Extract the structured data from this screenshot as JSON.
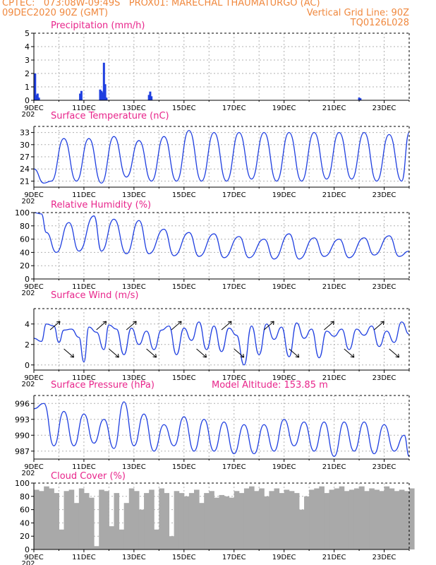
{
  "header": {
    "line1_left": "CPTEC:   073:08W-09:49S   PROX01: MARECHAL THAUMATURGO (AC)",
    "line2_left": "09DEC2020 90Z (GMT)",
    "line2_right": "Vertical Grid Line: 90Z",
    "line3_right": "TQ0126L028"
  },
  "colors": {
    "header": "#f0883e",
    "title": "#e8258b",
    "series": "#1f3fe0",
    "cloud": "#a9a9a9",
    "grid": "#b0b0b0"
  },
  "x_ticks": [
    "9DEC",
    "11DEC",
    "13DEC",
    "15DEC",
    "17DEC",
    "19DEC",
    "21DEC",
    "23DEC"
  ],
  "year_fragment": "202",
  "chart_data": [
    {
      "id": "precip",
      "type": "bar",
      "title": "Precipitation (mm/h)",
      "ylim": [
        0,
        5
      ],
      "yticks": [
        0,
        1,
        2,
        3,
        4,
        5
      ],
      "x": [
        0.05,
        0.1,
        0.15,
        0.2,
        1.85,
        1.9,
        2.65,
        2.7,
        2.75,
        2.8,
        2.85,
        2.9,
        4.6,
        4.65,
        4.7,
        13.0,
        13.05
      ],
      "values": [
        2.0,
        0.4,
        0.5,
        0.2,
        0.5,
        0.7,
        0.8,
        0.7,
        0.6,
        2.8,
        1.2,
        0.2,
        0.4,
        0.65,
        0.3,
        0.2,
        0.15
      ]
    },
    {
      "id": "temp",
      "type": "line",
      "title": "Surface Temperature (nC)",
      "ylim": [
        19.5,
        34.5
      ],
      "yticks": [
        21,
        24,
        27,
        30,
        33
      ],
      "x": [
        0,
        0.4,
        0.7,
        1.2,
        1.7,
        2.2,
        2.7,
        3.2,
        3.7,
        4.2,
        4.7,
        5.2,
        5.7,
        6.2,
        6.7,
        7.2,
        7.7,
        8.2,
        8.7,
        9.2,
        9.7,
        10.2,
        10.7,
        11.2,
        11.7,
        12.2,
        12.7,
        13.2,
        13.7,
        14.2,
        14.7,
        15.0
      ],
      "values": [
        24,
        20.5,
        21,
        31.5,
        21,
        31.5,
        20.5,
        32,
        22,
        31,
        21,
        32,
        21,
        33.5,
        21,
        33,
        21,
        33,
        21.5,
        33,
        21,
        33,
        21,
        33,
        21.5,
        33,
        21.5,
        33,
        21,
        32.5,
        21,
        33
      ]
    },
    {
      "id": "rh",
      "type": "line",
      "title": "Relative Humidity (%)",
      "ylim": [
        0,
        100
      ],
      "yticks": [
        0,
        20,
        40,
        60,
        80,
        100
      ],
      "x": [
        0,
        0.3,
        0.5,
        0.9,
        1.4,
        1.8,
        2.4,
        2.7,
        3.2,
        3.7,
        4.2,
        4.6,
        5.2,
        5.6,
        6.2,
        6.6,
        7.2,
        7.6,
        8.2,
        8.6,
        9.2,
        9.6,
        10.2,
        10.6,
        11.2,
        11.6,
        12.2,
        12.6,
        13.2,
        13.6,
        14.2,
        14.6,
        15.0
      ],
      "values": [
        100,
        98,
        70,
        40,
        85,
        42,
        95,
        42,
        90,
        38,
        88,
        38,
        75,
        35,
        70,
        34,
        68,
        32,
        64,
        32,
        60,
        30,
        68,
        30,
        62,
        34,
        60,
        32,
        62,
        36,
        65,
        34,
        42
      ]
    },
    {
      "id": "wind",
      "type": "line",
      "title": "Surface Wind (m/s)",
      "ylim": [
        -0.5,
        5.5
      ],
      "yticks": [
        0,
        2,
        4
      ],
      "x": [
        0,
        0.3,
        0.5,
        0.8,
        1.0,
        1.2,
        1.5,
        1.8,
        2.0,
        2.2,
        2.5,
        2.8,
        3.0,
        3.3,
        3.6,
        3.9,
        4.2,
        4.5,
        4.8,
        5.1,
        5.4,
        5.7,
        6.0,
        6.3,
        6.6,
        6.9,
        7.2,
        7.5,
        7.8,
        8.1,
        8.4,
        8.7,
        9.0,
        9.3,
        9.6,
        9.9,
        10.2,
        10.5,
        10.8,
        11.1,
        11.4,
        11.7,
        12.0,
        12.3,
        12.6,
        12.9,
        13.2,
        13.5,
        13.8,
        14.1,
        14.4,
        14.7,
        15.0
      ],
      "values": [
        2.6,
        2.3,
        4.0,
        3.8,
        2.2,
        3.4,
        3.5,
        2.7,
        0.3,
        3.7,
        3.2,
        1.5,
        3.9,
        3.5,
        1.0,
        3.6,
        2.0,
        3.3,
        1.5,
        3.4,
        3.8,
        1.0,
        3.6,
        2.4,
        4.2,
        1.5,
        3.8,
        1.3,
        3.6,
        2.9,
        0.0,
        3.8,
        1.0,
        4.0,
        2.5,
        3.7,
        0.8,
        4.1,
        2.6,
        3.5,
        0.7,
        3.3,
        2.8,
        3.5,
        1.5,
        3.5,
        2.9,
        3.8,
        1.8,
        3.3,
        2.2,
        4.2,
        3.0
      ]
    },
    {
      "id": "press",
      "type": "line",
      "title": "Surface Pressure (hPa)",
      "subtitle": "Model Altitude: 153.85 m",
      "ylim": [
        985.5,
        997.5
      ],
      "yticks": [
        987,
        990,
        993,
        996
      ],
      "x": [
        0,
        0.4,
        0.8,
        1.2,
        1.6,
        2.0,
        2.4,
        2.8,
        3.2,
        3.6,
        4.0,
        4.4,
        4.8,
        5.2,
        5.6,
        6.0,
        6.4,
        6.8,
        7.2,
        7.6,
        8.0,
        8.4,
        8.8,
        9.2,
        9.6,
        10.0,
        10.4,
        10.8,
        11.2,
        11.6,
        12.0,
        12.4,
        12.8,
        13.2,
        13.6,
        14.0,
        14.4,
        14.8,
        15.0
      ],
      "values": [
        995,
        996,
        988,
        994.5,
        988,
        994,
        988.5,
        993,
        987.5,
        996.3,
        988,
        994,
        987,
        992,
        988,
        993.5,
        987,
        993,
        987,
        992.5,
        986.5,
        992,
        986.5,
        992,
        987,
        993,
        988,
        992.5,
        987,
        992.5,
        986,
        992.5,
        987,
        992.5,
        986.5,
        992,
        987,
        990,
        986
      ]
    },
    {
      "id": "cloud",
      "type": "area",
      "title": "Cloud Cover (%)",
      "ylim": [
        0,
        100
      ],
      "yticks": [
        0,
        20,
        40,
        60,
        80,
        100
      ],
      "x": [
        0,
        0.2,
        0.4,
        0.6,
        0.8,
        1.0,
        1.2,
        1.4,
        1.6,
        1.8,
        2.0,
        2.2,
        2.4,
        2.6,
        2.8,
        3.0,
        3.2,
        3.4,
        3.6,
        3.8,
        4.0,
        4.2,
        4.4,
        4.6,
        4.8,
        5.0,
        5.2,
        5.4,
        5.6,
        5.8,
        6.0,
        6.2,
        6.4,
        6.6,
        6.8,
        7.0,
        7.2,
        7.4,
        7.6,
        7.8,
        8.0,
        8.2,
        8.4,
        8.6,
        8.8,
        9.0,
        9.2,
        9.4,
        9.6,
        9.8,
        10.0,
        10.2,
        10.4,
        10.6,
        10.8,
        11.0,
        11.2,
        11.4,
        11.6,
        11.8,
        12.0,
        12.2,
        12.4,
        12.6,
        12.8,
        13.0,
        13.2,
        13.4,
        13.6,
        13.8,
        14.0,
        14.2,
        14.4,
        14.6,
        14.8,
        15.0
      ],
      "values": [
        90,
        88,
        95,
        92,
        85,
        30,
        88,
        90,
        70,
        92,
        85,
        78,
        5,
        90,
        88,
        35,
        85,
        30,
        70,
        92,
        88,
        60,
        85,
        90,
        30,
        92,
        85,
        20,
        88,
        85,
        80,
        85,
        90,
        70,
        85,
        88,
        78,
        82,
        80,
        78,
        88,
        85,
        92,
        95,
        88,
        92,
        80,
        88,
        92,
        85,
        90,
        88,
        85,
        60,
        80,
        90,
        92,
        95,
        85,
        90,
        92,
        95,
        88,
        90,
        92,
        95,
        88,
        92,
        90,
        88,
        95,
        92,
        88,
        90,
        88,
        92
      ]
    }
  ]
}
